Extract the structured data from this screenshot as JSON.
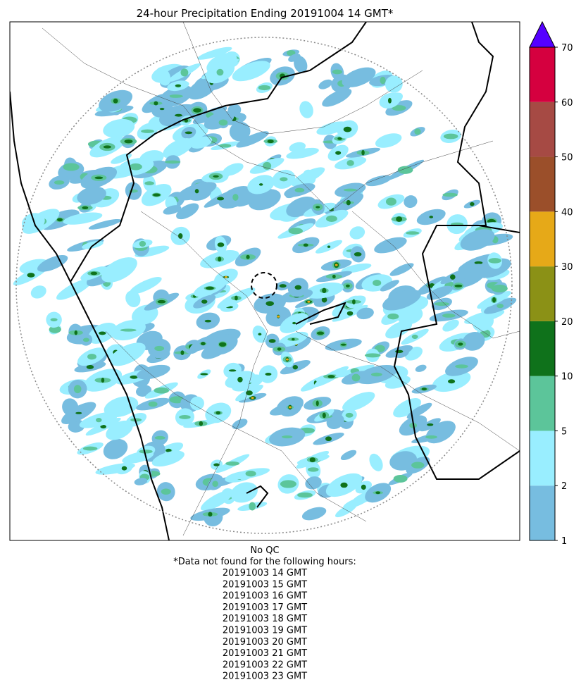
{
  "title": "24-hour Precipitation Ending 20191004 14 GMT*",
  "colorbar": {
    "levels": [
      1,
      2,
      5,
      10,
      20,
      30,
      40,
      50,
      60,
      70
    ],
    "colors": [
      "#77bde0",
      "#99eeff",
      "#5cc59a",
      "#0f721b",
      "#8b9116",
      "#e6a918",
      "#9b4f2a",
      "#a64a44",
      "#d5003f"
    ],
    "extend_color": "#5500ff"
  },
  "footer": {
    "qc": "No QC",
    "note": "*Data not found for the following hours:",
    "hours": [
      "20191003 14 GMT",
      "20191003 15 GMT",
      "20191003 16 GMT",
      "20191003 17 GMT",
      "20191003 18 GMT",
      "20191003 19 GMT",
      "20191003 20 GMT",
      "20191003 21 GMT",
      "20191003 22 GMT",
      "20191003 23 GMT"
    ]
  }
}
